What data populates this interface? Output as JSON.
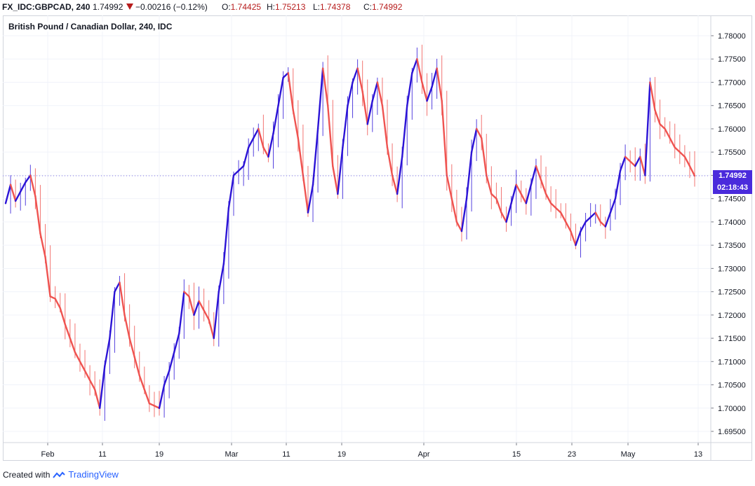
{
  "header": {
    "symbol": "FX_IDC:GBPCAD, 240",
    "last": "1.74992",
    "change": "−0.00216 (−0.12%)",
    "o_label": "O:",
    "o_value": "1.74425",
    "h_label": "H:",
    "h_value": "1.75213",
    "l_label": "L:",
    "l_value": "1.74378",
    "c_label": "C:",
    "c_value": "1.74992",
    "down_color": "#b71c1c"
  },
  "price_tag": {
    "price": "1.74992",
    "countdown": "02:18:43",
    "color": "#4a2bdc"
  },
  "footer": {
    "created_with": "Created with",
    "brand": "TradingView",
    "logo_icon": "tradingview-logo-icon"
  },
  "chart_data": {
    "type": "line",
    "title": "British Pound / Canadian Dollar, 240, IDC",
    "xlabel": "",
    "ylabel": "",
    "ylim": [
      1.6925,
      1.7825
    ],
    "x_tick_labels": [
      "Feb",
      "11",
      "19",
      "Mar",
      "11",
      "19",
      "Apr",
      "15",
      "23",
      "May",
      "13"
    ],
    "y_tick_labels": [
      "1.78000",
      "1.77500",
      "1.77000",
      "1.76500",
      "1.76000",
      "1.75500",
      "1.75000",
      "1.74500",
      "1.74000",
      "1.73500",
      "1.73000",
      "1.72500",
      "1.72000",
      "1.71500",
      "1.71000",
      "1.70500",
      "1.70000",
      "1.69500"
    ],
    "grid": true,
    "up_color": "#2b13d6",
    "down_color": "#ef5350",
    "series": [
      {
        "values": [
          1.744,
          1.748,
          1.7445,
          1.7465,
          1.7485,
          1.75,
          1.7455,
          1.7375,
          1.7325,
          1.724,
          1.7235,
          1.7215,
          1.718,
          1.715,
          1.712,
          1.71,
          1.708,
          1.706,
          1.704,
          1.7,
          1.709,
          1.715,
          1.725,
          1.727,
          1.72,
          1.715,
          1.711,
          1.707,
          1.704,
          1.701,
          1.7005,
          1.7,
          1.705,
          1.708,
          1.712,
          1.716,
          1.725,
          1.724,
          1.72,
          1.723,
          1.721,
          1.719,
          1.715,
          1.725,
          1.731,
          1.743,
          1.75,
          1.751,
          1.752,
          1.756,
          1.758,
          1.76,
          1.756,
          1.754,
          1.759,
          1.765,
          1.771,
          1.772,
          1.764,
          1.758,
          1.75,
          1.742,
          1.748,
          1.76,
          1.773,
          1.765,
          1.752,
          1.746,
          1.756,
          1.765,
          1.77,
          1.773,
          1.768,
          1.761,
          1.766,
          1.77,
          1.765,
          1.756,
          1.75,
          1.746,
          1.754,
          1.765,
          1.772,
          1.775,
          1.77,
          1.766,
          1.769,
          1.773,
          1.766,
          1.75,
          1.745,
          1.74,
          1.738,
          1.745,
          1.755,
          1.76,
          1.758,
          1.75,
          1.746,
          1.745,
          1.742,
          1.74,
          1.744,
          1.748,
          1.746,
          1.744,
          1.748,
          1.752,
          1.749,
          1.746,
          1.744,
          1.743,
          1.742,
          1.74,
          1.738,
          1.735,
          1.738,
          1.74,
          1.741,
          1.742,
          1.74,
          1.739,
          1.742,
          1.745,
          1.751,
          1.754,
          1.753,
          1.752,
          1.754,
          1.75,
          1.77,
          1.764,
          1.761,
          1.76,
          1.758,
          1.756,
          1.755,
          1.754,
          1.752,
          1.7499
        ]
      }
    ],
    "current_value": 1.74992
  }
}
